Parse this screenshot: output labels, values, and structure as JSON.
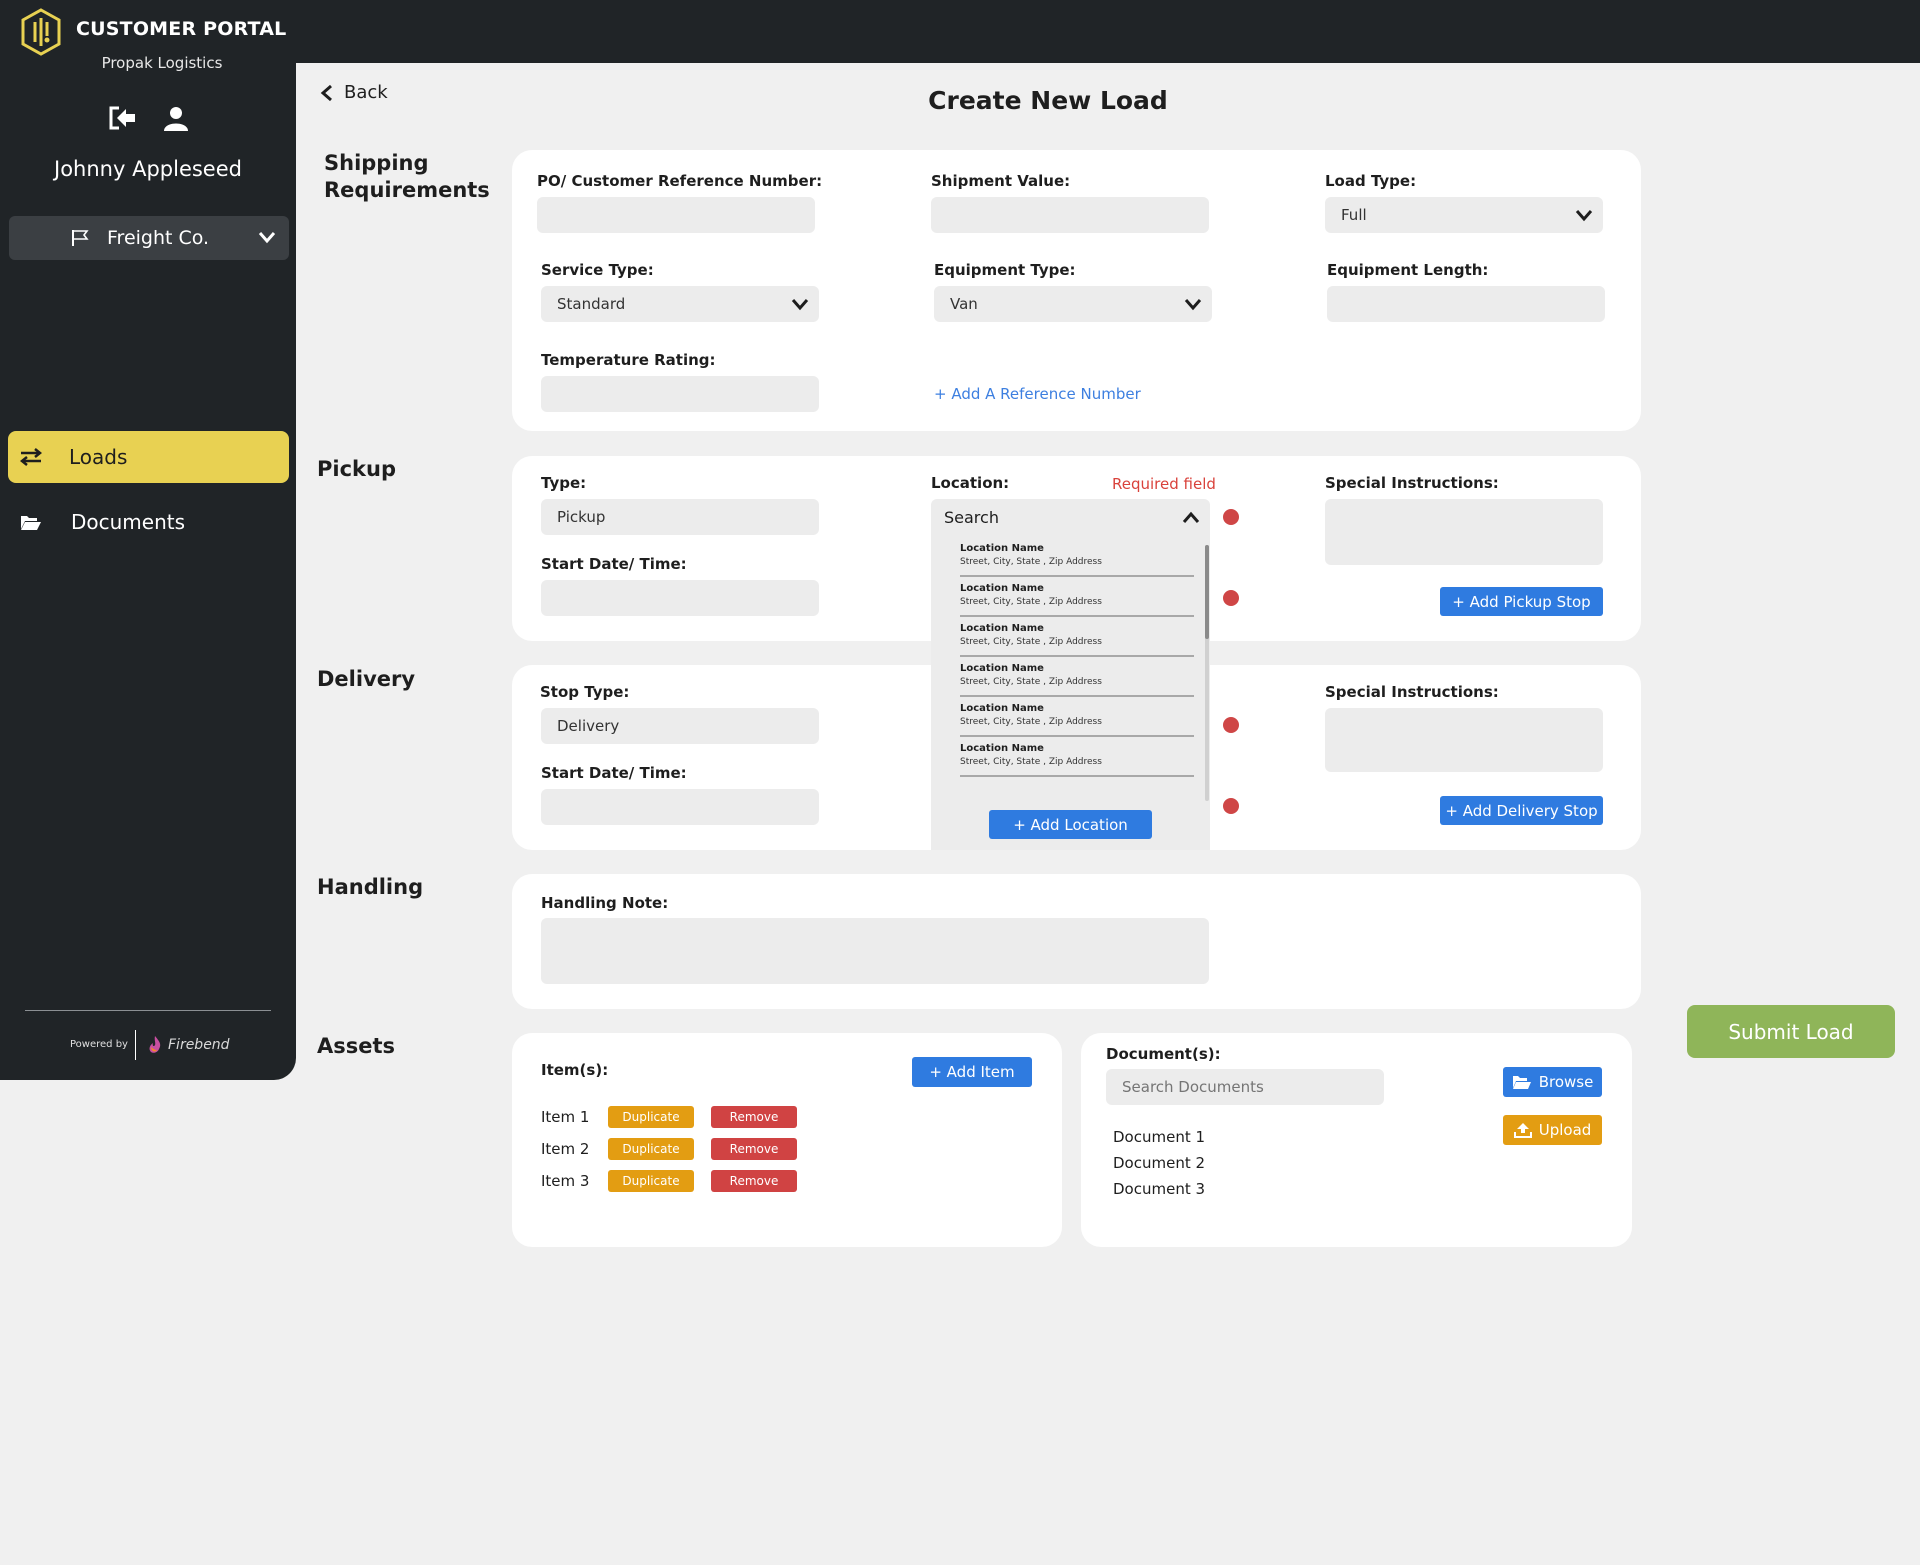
{
  "app": {
    "title": "CUSTOMER PORTAL",
    "company": "Propak Logistics",
    "user_name": "Johnny Appleseed",
    "selected_company": "Freight Co.",
    "powered_by": "Powered by",
    "powered_brand": "Firebend"
  },
  "nav": {
    "items": [
      {
        "label": "Loads",
        "icon": "swap-arrows-icon",
        "active": true
      },
      {
        "label": "Documents",
        "icon": "folder-open-icon",
        "active": false
      }
    ]
  },
  "page": {
    "back_label": "Back",
    "title": "Create New Load",
    "submit_label": "Submit Load"
  },
  "shipping": {
    "section_label": "Shipping Requirements",
    "po_label": "PO/ Customer Reference Number:",
    "po_value": "",
    "value_label": "Shipment Value:",
    "value_value": "",
    "load_type_label": "Load Type:",
    "load_type_value": "Full",
    "service_type_label": "Service Type:",
    "service_type_value": "Standard",
    "equipment_type_label": "Equipment Type:",
    "equipment_type_value": "Van",
    "equipment_length_label": "Equipment Length:",
    "equipment_length_value": "",
    "temperature_label": "Temperature Rating:",
    "temperature_value": "",
    "add_reference_label": "+ Add A Reference Number"
  },
  "pickup": {
    "section_label": "Pickup",
    "type_label": "Type:",
    "type_value": "Pickup",
    "start_label": "Start Date/ Time:",
    "location_label": "Location:",
    "required_text": "Required field",
    "special_label": "Special Instructions:",
    "add_stop_label": "+ Add Pickup Stop"
  },
  "location_dropdown": {
    "search_text": "Search",
    "items": [
      {
        "name": "Location Name",
        "address": "Street, City, State , Zip Address"
      },
      {
        "name": "Location Name",
        "address": "Street, City, State , Zip Address"
      },
      {
        "name": "Location Name",
        "address": "Street, City, State , Zip Address"
      },
      {
        "name": "Location Name",
        "address": "Street, City, State , Zip Address"
      },
      {
        "name": "Location Name",
        "address": "Street, City, State , Zip Address"
      },
      {
        "name": "Location Name",
        "address": "Street, City, State , Zip Address"
      }
    ],
    "add_location_label": "+ Add Location"
  },
  "delivery": {
    "section_label": "Delivery",
    "stop_type_label": "Stop Type:",
    "stop_type_value": "Delivery",
    "start_label": "Start Date/ Time:",
    "special_label": "Special Instructions:",
    "add_stop_label": "+ Add Delivery Stop"
  },
  "handling": {
    "section_label": "Handling",
    "note_label": "Handling Note:"
  },
  "assets": {
    "section_label": "Assets",
    "items_label": "Item(s):",
    "add_item_label": "+ Add Item",
    "duplicate_label": "Duplicate",
    "remove_label": "Remove",
    "items": [
      "Item 1",
      "Item 2",
      "Item 3"
    ],
    "documents_label": "Document(s):",
    "search_placeholder": "Search Documents",
    "browse_label": "Browse",
    "upload_label": "Upload",
    "documents": [
      "Document 1",
      "Document 2",
      "Document 3"
    ]
  },
  "colors": {
    "sidebar": "#202427",
    "accent_yellow": "#e8d152",
    "primary_blue": "#2f7be0",
    "warning_orange": "#e39d12",
    "danger_red": "#d04343",
    "submit_green": "#8fb559"
  }
}
